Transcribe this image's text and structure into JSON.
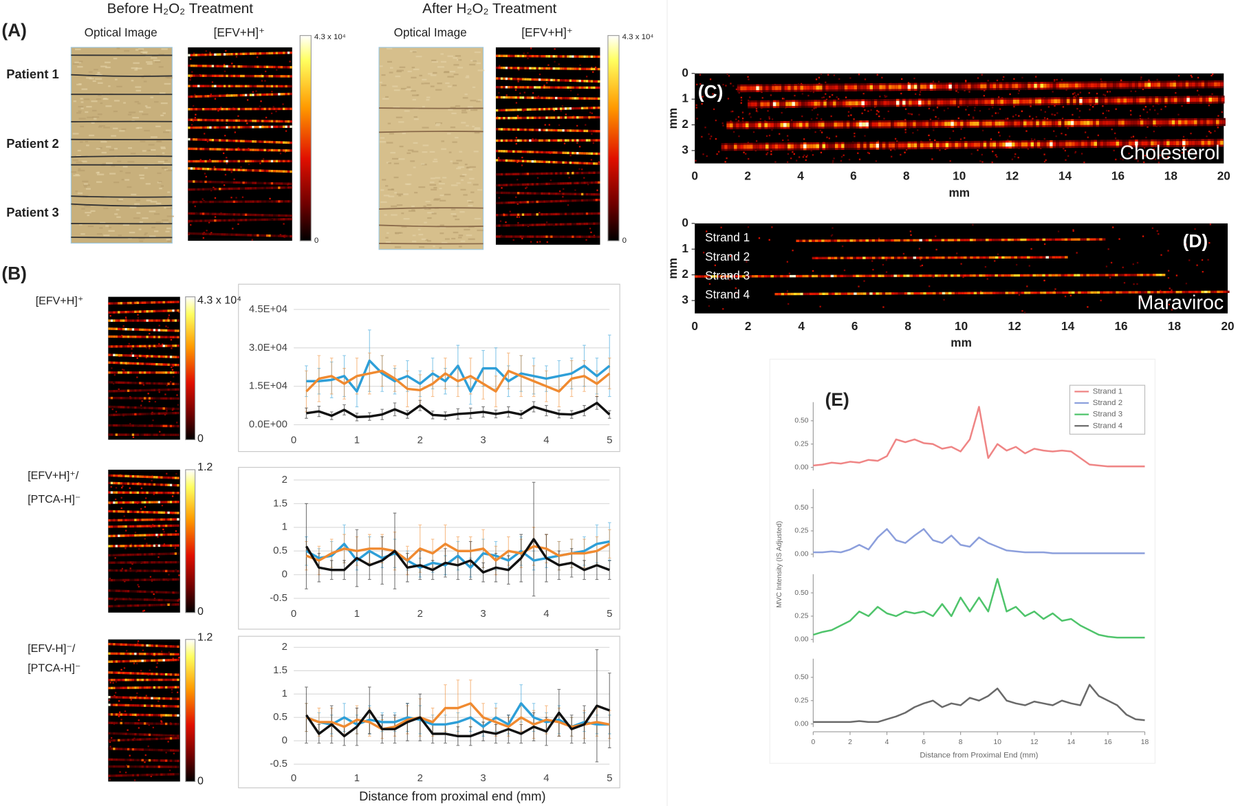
{
  "panel_a": {
    "panel": "(A)",
    "headers": [
      "Before H₂O₂ Treatment",
      "After H₂O₂ Treatment"
    ],
    "column_labels": [
      "Optical Image",
      "[EFV+H]⁺",
      "Optical Image",
      "[EFV+H]⁺"
    ],
    "patients": [
      {
        "label": "Patient 1",
        "color": "#3a9fd6"
      },
      {
        "label": "Patient 2",
        "color": "#f08a3c"
      },
      {
        "label": "Patient 3",
        "color": "#1a1a1a"
      }
    ],
    "colorbar_labels": [
      "4.3 x 10⁴",
      "0"
    ]
  },
  "panel_b": {
    "panel": "(B)"
  },
  "chart_data": [
    {
      "type": "line",
      "row_label": [
        "[EFV+H]⁺"
      ],
      "colorbar_labels": [
        "4.3 x 10⁴",
        "0"
      ],
      "x": [
        0.2,
        0.4,
        0.6,
        0.8,
        1,
        1.2,
        1.4,
        1.6,
        1.8,
        2,
        2.2,
        2.4,
        2.6,
        2.8,
        3,
        3.2,
        3.4,
        3.6,
        3.8,
        4,
        4.2,
        4.4,
        4.6,
        4.8,
        5
      ],
      "xlim": [
        0,
        5
      ],
      "xticks": [
        0,
        1,
        2,
        3,
        4,
        5
      ],
      "ylim": [
        0,
        45000
      ],
      "yticks": [
        {
          "value": 0,
          "label": "0.0E+00"
        },
        {
          "value": 15000,
          "label": "1.5E+04"
        },
        {
          "value": 30000,
          "label": "3.0E+04"
        },
        {
          "value": 45000,
          "label": "4.5E+04"
        }
      ],
      "grid": true,
      "series": [
        {
          "color": "#2e9fd8",
          "values": [
            17000,
            17000,
            17500,
            19000,
            13000,
            25000,
            20000,
            17000,
            19000,
            16000,
            20000,
            17000,
            23000,
            13000,
            22000,
            22000,
            17000,
            20000,
            19000,
            18000,
            19000,
            20000,
            23000,
            19000,
            23000
          ],
          "errors": [
            6000,
            5000,
            7000,
            8000,
            6000,
            12000,
            7000,
            5000,
            6000,
            5000,
            6000,
            5000,
            8000,
            5000,
            7000,
            8000,
            6000,
            7000,
            7000,
            5000,
            6000,
            6000,
            8000,
            7000,
            12000
          ]
        },
        {
          "color": "#f08a30",
          "values": [
            13000,
            18000,
            19000,
            16000,
            19000,
            20000,
            21000,
            18000,
            14000,
            13500,
            16000,
            20000,
            17000,
            19000,
            16000,
            13000,
            21000,
            19000,
            17000,
            15000,
            13000,
            18000,
            19000,
            16000,
            20000
          ],
          "errors": [
            8000,
            9000,
            7000,
            6000,
            7000,
            8000,
            6000,
            5000,
            7000,
            6000,
            5000,
            6000,
            6000,
            7000,
            6000,
            6000,
            7000,
            8000,
            6000,
            6000,
            6000,
            7000,
            6000,
            5000,
            6000
          ]
        },
        {
          "color": "#111111",
          "values": [
            4500,
            5200,
            3500,
            5800,
            3000,
            3200,
            4000,
            6000,
            4000,
            7500,
            3800,
            3500,
            4200,
            4500,
            5000,
            4200,
            5000,
            4000,
            7000,
            5500,
            4200,
            4000,
            5500,
            8500,
            4000
          ],
          "errors": [
            2000,
            2000,
            1500,
            2000,
            1500,
            1500,
            2000,
            2500,
            1500,
            2000,
            1500,
            1500,
            2000,
            2000,
            2000,
            1500,
            2000,
            1500,
            2000,
            2000,
            1500,
            1500,
            2000,
            2500,
            1500
          ]
        }
      ]
    },
    {
      "type": "line",
      "row_label": [
        "[EFV+H]⁺/",
        "[PTCA-H]⁻"
      ],
      "colorbar_labels": [
        "1.2",
        "0"
      ],
      "x": [
        0.2,
        0.4,
        0.6,
        0.8,
        1,
        1.2,
        1.4,
        1.6,
        1.8,
        2,
        2.2,
        2.4,
        2.6,
        2.8,
        3,
        3.2,
        3.4,
        3.6,
        3.8,
        4,
        4.2,
        4.4,
        4.6,
        4.8,
        5
      ],
      "xlim": [
        0,
        5
      ],
      "xticks": [
        0,
        1,
        2,
        3,
        4,
        5
      ],
      "ylim": [
        -0.5,
        2
      ],
      "yticks": [
        -0.5,
        0,
        0.5,
        1,
        1.5,
        2
      ],
      "grid": true,
      "series": [
        {
          "color": "#2e9fd8",
          "values": [
            0.5,
            0.35,
            0.4,
            0.65,
            0.3,
            0.5,
            0.35,
            0.45,
            0.3,
            0.15,
            0.25,
            0.2,
            0.4,
            0.15,
            0.45,
            0.4,
            0.3,
            0.5,
            0.3,
            0.35,
            0.4,
            0.45,
            0.5,
            0.65,
            0.7
          ],
          "errors": [
            0.3,
            0.2,
            0.3,
            0.4,
            0.2,
            0.3,
            0.2,
            0.3,
            0.2,
            0.2,
            0.2,
            0.2,
            0.3,
            0.2,
            0.3,
            0.3,
            0.2,
            0.3,
            0.2,
            0.2,
            0.3,
            0.3,
            0.3,
            0.4,
            0.4
          ]
        },
        {
          "color": "#f08a30",
          "values": [
            0.4,
            0.3,
            0.45,
            0.55,
            0.5,
            0.55,
            0.55,
            0.5,
            0.3,
            0.55,
            0.45,
            0.65,
            0.5,
            0.5,
            0.55,
            0.3,
            0.5,
            0.45,
            0.6,
            0.55,
            0.4,
            0.45,
            0.45,
            0.5,
            0.65
          ],
          "errors": [
            0.3,
            0.3,
            0.3,
            0.3,
            0.3,
            0.3,
            0.3,
            0.4,
            0.3,
            0.5,
            0.3,
            0.4,
            0.3,
            0.3,
            0.4,
            0.3,
            0.3,
            0.3,
            0.4,
            0.3,
            0.3,
            0.3,
            0.3,
            0.3,
            0.3
          ]
        },
        {
          "color": "#111111",
          "values": [
            0.6,
            0.15,
            0.1,
            0.1,
            0.35,
            0.2,
            0.3,
            0.5,
            0.15,
            0.2,
            0.1,
            0.25,
            0.2,
            0.3,
            0.05,
            0.15,
            0.1,
            0.35,
            0.75,
            0.35,
            0.2,
            0.25,
            0.1,
            0.2,
            0.1
          ],
          "errors": [
            0.9,
            0.3,
            0.2,
            0.2,
            0.6,
            0.3,
            0.5,
            0.8,
            0.3,
            0.3,
            0.2,
            0.3,
            0.3,
            0.4,
            0.2,
            0.3,
            0.3,
            0.5,
            1.2,
            0.5,
            0.3,
            0.3,
            0.2,
            0.3,
            0.2
          ]
        }
      ]
    },
    {
      "type": "line",
      "row_label": [
        "[EFV-H]⁻/",
        "[PTCA-H]⁻"
      ],
      "colorbar_labels": [
        "1.2",
        "0"
      ],
      "x": [
        0.2,
        0.4,
        0.6,
        0.8,
        1,
        1.2,
        1.4,
        1.6,
        1.8,
        2,
        2.2,
        2.4,
        2.6,
        2.8,
        3,
        3.2,
        3.4,
        3.6,
        3.8,
        4,
        4.2,
        4.4,
        4.6,
        4.8,
        5
      ],
      "xlim": [
        0,
        5
      ],
      "xticks": [
        0,
        1,
        2,
        3,
        4,
        5
      ],
      "ylim": [
        -0.5,
        2
      ],
      "yticks": [
        -0.5,
        0,
        0.5,
        1,
        1.5,
        2
      ],
      "grid": true,
      "xlabel": "Distance from proximal end (mm)",
      "series": [
        {
          "color": "#2e9fd8",
          "values": [
            0.5,
            0.4,
            0.35,
            0.5,
            0.35,
            0.45,
            0.4,
            0.4,
            0.5,
            0.45,
            0.35,
            0.35,
            0.4,
            0.5,
            0.3,
            0.5,
            0.35,
            0.8,
            0.5,
            0.4,
            0.45,
            0.3,
            0.4,
            0.35,
            0.35
          ],
          "errors": [
            0.3,
            0.2,
            0.2,
            0.3,
            0.2,
            0.3,
            0.2,
            0.2,
            0.3,
            0.3,
            0.2,
            0.2,
            0.2,
            0.3,
            0.2,
            0.3,
            0.2,
            0.4,
            0.3,
            0.2,
            0.3,
            0.2,
            0.2,
            0.2,
            0.2
          ]
        },
        {
          "color": "#f08a30",
          "values": [
            0.5,
            0.4,
            0.4,
            0.3,
            0.45,
            0.4,
            0.25,
            0.3,
            0.45,
            0.5,
            0.4,
            0.7,
            0.7,
            0.8,
            0.5,
            0.4,
            0.3,
            0.5,
            0.35,
            0.45,
            0.4,
            0.3,
            0.35,
            0.4,
            0.35
          ],
          "errors": [
            0.3,
            0.3,
            0.3,
            0.2,
            0.3,
            0.3,
            0.2,
            0.2,
            0.3,
            0.4,
            0.3,
            0.5,
            0.6,
            0.5,
            0.3,
            0.3,
            0.2,
            0.3,
            0.3,
            0.3,
            0.3,
            0.2,
            0.3,
            0.3,
            0.3
          ]
        },
        {
          "color": "#111111",
          "values": [
            0.55,
            0.15,
            0.35,
            0.1,
            0.3,
            0.65,
            0.25,
            0.25,
            0.4,
            0.5,
            0.15,
            0.15,
            0.1,
            0.1,
            0.2,
            0.15,
            0.25,
            0.15,
            0.3,
            0.2,
            0.6,
            0.25,
            0.35,
            0.75,
            0.65
          ],
          "errors": [
            0.6,
            0.2,
            0.4,
            0.2,
            0.4,
            0.5,
            0.3,
            0.3,
            0.4,
            0.5,
            0.2,
            0.2,
            0.2,
            0.2,
            0.2,
            0.2,
            0.3,
            0.2,
            0.3,
            0.3,
            0.5,
            0.3,
            0.4,
            1.2,
            0.8
          ]
        }
      ]
    },
    {
      "type": "heatmap",
      "panel": "(C)",
      "annotation": "Cholesterol",
      "xlim": [
        0,
        20
      ],
      "xticks": [
        0,
        2,
        4,
        6,
        8,
        10,
        12,
        14,
        16,
        18,
        20
      ],
      "ylim": [
        0,
        3.5
      ],
      "yticks": [
        0,
        1,
        2,
        3
      ],
      "y_inverted": true,
      "xlabel": "mm",
      "ylabel": "mm"
    },
    {
      "type": "heatmap",
      "panel": "(D)",
      "annotation": "Maraviroc",
      "strand_labels": [
        "Strand 1",
        "Strand 2",
        "Strand 3",
        "Strand 4"
      ],
      "xlim": [
        0,
        20
      ],
      "xticks": [
        0,
        2,
        4,
        6,
        8,
        10,
        12,
        14,
        16,
        18,
        20
      ],
      "ylim": [
        0,
        3.5
      ],
      "yticks": [
        0,
        1,
        2,
        3
      ],
      "y_inverted": true,
      "xlabel": "mm",
      "ylabel": "mm"
    },
    {
      "type": "facet-line",
      "panel": "(E)",
      "legend": "upper right",
      "xlabel": "Distance from Proximal End (mm)",
      "ylabel": "MVC Intensity (IS Adjusted)",
      "x": [
        0,
        0.5,
        1,
        1.5,
        2,
        2.5,
        3,
        3.5,
        4,
        4.5,
        5,
        5.5,
        6,
        6.5,
        7,
        7.5,
        8,
        8.5,
        9,
        9.5,
        10,
        10.5,
        11,
        11.5,
        12,
        12.5,
        13,
        13.5,
        14,
        14.5,
        15,
        15.5,
        16,
        16.5,
        17,
        17.5,
        18
      ],
      "xlim": [
        0,
        18
      ],
      "xticks": [
        0,
        2,
        4,
        6,
        8,
        10,
        12,
        14,
        16,
        18
      ],
      "ylim": [
        0,
        0.7
      ],
      "yticks": [
        {
          "value": 0,
          "label": "0.00"
        },
        {
          "value": 0.25,
          "label": "0.25"
        },
        {
          "value": 0.5,
          "label": "0.50"
        }
      ],
      "series": [
        {
          "name": "Strand 1",
          "color": "#ef8585",
          "values": [
            0.02,
            0.03,
            0.05,
            0.04,
            0.06,
            0.05,
            0.08,
            0.07,
            0.12,
            0.3,
            0.27,
            0.3,
            0.26,
            0.25,
            0.2,
            0.22,
            0.17,
            0.3,
            0.65,
            0.1,
            0.25,
            0.18,
            0.22,
            0.15,
            0.2,
            0.18,
            0.17,
            0.18,
            0.17,
            0.1,
            0.03,
            0.02,
            0.01,
            0.01,
            0.01,
            0.01,
            0.01
          ]
        },
        {
          "name": "Strand 2",
          "color": "#8c9fdc",
          "values": [
            0.02,
            0.02,
            0.03,
            0.02,
            0.05,
            0.1,
            0.05,
            0.18,
            0.27,
            0.15,
            0.12,
            0.2,
            0.27,
            0.15,
            0.12,
            0.2,
            0.1,
            0.08,
            0.18,
            0.12,
            0.08,
            0.04,
            0.03,
            0.02,
            0.02,
            0.02,
            0.01,
            0.01,
            0.01,
            0.01,
            0.01,
            0.01,
            0.01,
            0.01,
            0.01,
            0.01,
            0.01
          ]
        },
        {
          "name": "Strand 3",
          "color": "#4fc46b",
          "values": [
            0.05,
            0.08,
            0.1,
            0.15,
            0.2,
            0.3,
            0.25,
            0.35,
            0.28,
            0.25,
            0.3,
            0.28,
            0.3,
            0.25,
            0.38,
            0.25,
            0.45,
            0.3,
            0.45,
            0.3,
            0.65,
            0.3,
            0.35,
            0.25,
            0.3,
            0.22,
            0.28,
            0.2,
            0.22,
            0.15,
            0.1,
            0.05,
            0.03,
            0.02,
            0.02,
            0.02,
            0.02
          ]
        },
        {
          "name": "Strand 4",
          "color": "#6a6a6a",
          "values": [
            0.02,
            0.02,
            0.02,
            0.02,
            0.02,
            0.03,
            0.02,
            0.02,
            0.05,
            0.08,
            0.12,
            0.18,
            0.22,
            0.25,
            0.18,
            0.22,
            0.2,
            0.28,
            0.25,
            0.3,
            0.38,
            0.25,
            0.22,
            0.2,
            0.24,
            0.22,
            0.2,
            0.25,
            0.22,
            0.2,
            0.42,
            0.3,
            0.25,
            0.2,
            0.1,
            0.05,
            0.04
          ]
        }
      ]
    }
  ]
}
